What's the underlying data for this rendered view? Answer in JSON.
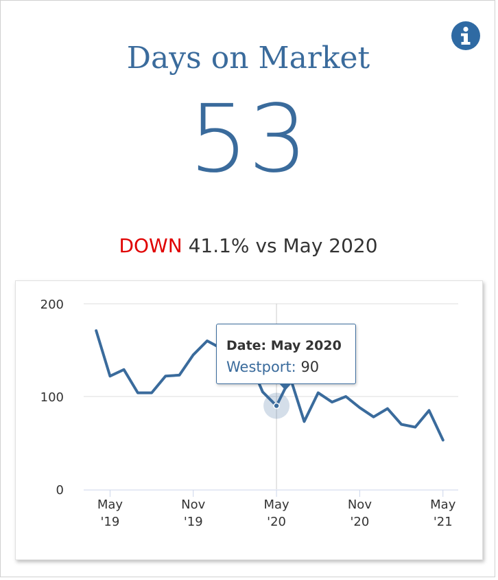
{
  "card": {
    "title": "Days on Market",
    "metric_value": "53",
    "change": {
      "direction": "DOWN",
      "percent_text": "41.1%",
      "comparison_text": "vs May 2020"
    },
    "info_icon": "info-icon"
  },
  "colors": {
    "primary": "#3a6b9c",
    "down": "#e00000",
    "grid": "#dddddd"
  },
  "tooltip": {
    "date_label": "Date:",
    "date_value": "May 2020",
    "series_label": "Westport:",
    "series_value": "90"
  },
  "chart_data": {
    "type": "line",
    "y_ticks": [
      "200",
      "100",
      "0"
    ],
    "x_ticks": [
      {
        "line1": "May",
        "line2": "'19",
        "month_index": 0
      },
      {
        "line1": "Nov",
        "line2": "'19",
        "month_index": 6
      },
      {
        "line1": "May",
        "line2": "'20",
        "month_index": 12
      },
      {
        "line1": "Nov",
        "line2": "'20",
        "month_index": 18
      },
      {
        "line1": "May",
        "line2": "'21",
        "month_index": 24
      }
    ],
    "ylim": [
      0,
      200
    ],
    "xlim": [
      -1.9,
      25.1
    ],
    "series": [
      {
        "name": "Westport",
        "x": [
          -1,
          0,
          1,
          2,
          3,
          4,
          5,
          6,
          7,
          8,
          9,
          10,
          11,
          12,
          13,
          14,
          15,
          16,
          17,
          18,
          19,
          20,
          21,
          22,
          23,
          24
        ],
        "values": [
          171,
          122,
          129,
          104,
          104,
          122,
          123,
          145,
          160,
          152,
          140,
          140,
          105,
          90,
          120,
          73,
          104,
          94,
          100,
          88,
          78,
          87,
          70,
          67,
          85,
          53
        ]
      }
    ],
    "highlight": {
      "x": 12,
      "value": 90,
      "label": "May 2020"
    }
  }
}
